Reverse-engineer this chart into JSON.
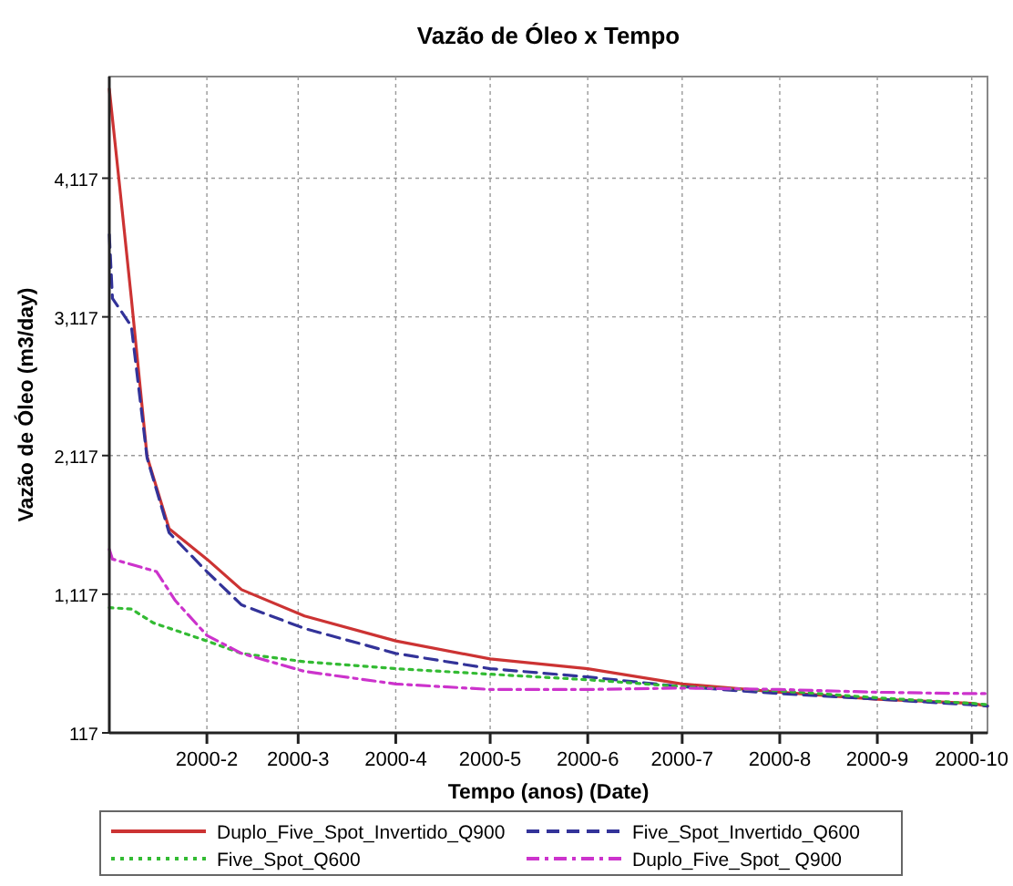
{
  "chart_data": {
    "type": "line",
    "title": "Vazão de Óleo x Tempo",
    "xlabel": "Tempo (anos) (Date)",
    "ylabel": "Vazão de Óleo (m3/day)",
    "series": [
      {
        "name": "Duplo_Five_Spot_Invertido_Q900",
        "color": "#cc3333",
        "line_style": "solid",
        "x": [
          "2000-01-01",
          "2000-01-04",
          "2000-01-08",
          "2000-01-13",
          "2000-01-20",
          "2000-02-01",
          "2000-02-12",
          "2000-03-03",
          "2000-04-01",
          "2000-05-01",
          "2000-06-01",
          "2000-07-01",
          "2000-08-01",
          "2000-09-01",
          "2000-10-01",
          "2000-10-06"
        ],
        "values": [
          4760,
          4120,
          3250,
          2110,
          1590,
          1370,
          1150,
          960,
          780,
          650,
          580,
          470,
          410,
          360,
          330,
          310
        ]
      },
      {
        "name": "Five_Spot_Invertido_Q600",
        "color": "#333399",
        "line_style": "dashed",
        "x": [
          "2000-01-01",
          "2000-01-02",
          "2000-01-08",
          "2000-01-13",
          "2000-01-20",
          "2000-02-01",
          "2000-02-12",
          "2000-03-03",
          "2000-04-01",
          "2000-05-01",
          "2000-06-01",
          "2000-07-01",
          "2000-08-01",
          "2000-09-01",
          "2000-10-01",
          "2000-10-06"
        ],
        "values": [
          3710,
          3250,
          3050,
          2100,
          1560,
          1280,
          1040,
          870,
          690,
          580,
          520,
          450,
          400,
          360,
          320,
          310
        ]
      },
      {
        "name": "Five_Spot_Q600",
        "color": "#33bb33",
        "line_style": "dotted",
        "x": [
          "2000-01-01",
          "2000-01-08",
          "2000-01-15",
          "2000-02-01",
          "2000-02-12",
          "2000-03-03",
          "2000-04-01",
          "2000-05-01",
          "2000-06-01",
          "2000-07-01",
          "2000-08-01",
          "2000-09-01",
          "2000-10-01",
          "2000-10-06"
        ],
        "values": [
          1020,
          1010,
          910,
          780,
          690,
          630,
          580,
          540,
          500,
          450,
          420,
          370,
          330,
          320
        ]
      },
      {
        "name": "Duplo_Five_Spot_ Q900",
        "color": "#cc33cc",
        "line_style": "dashdot",
        "x": [
          "2000-01-01",
          "2000-01-02",
          "2000-01-16",
          "2000-01-22",
          "2000-02-01",
          "2000-02-12",
          "2000-03-03",
          "2000-04-01",
          "2000-05-01",
          "2000-06-01",
          "2000-07-01",
          "2000-08-01",
          "2000-09-01",
          "2000-10-01",
          "2000-10-06"
        ],
        "values": [
          1440,
          1370,
          1280,
          1070,
          820,
          690,
          560,
          470,
          430,
          430,
          440,
          430,
          410,
          400,
          400
        ]
      }
    ],
    "xlim": [
      "2000-01-01",
      "2000-10-06"
    ],
    "xticks": [
      {
        "value": "2000-02-01",
        "label": "2000-2"
      },
      {
        "value": "2000-03-01",
        "label": "2000-3"
      },
      {
        "value": "2000-04-01",
        "label": "2000-4"
      },
      {
        "value": "2000-05-01",
        "label": "2000-5"
      },
      {
        "value": "2000-06-01",
        "label": "2000-6"
      },
      {
        "value": "2000-07-01",
        "label": "2000-7"
      },
      {
        "value": "2000-08-01",
        "label": "2000-8"
      },
      {
        "value": "2000-09-01",
        "label": "2000-9"
      },
      {
        "value": "2000-10-01",
        "label": "2000-10"
      }
    ],
    "ylim": [
      117,
      4850
    ],
    "yticks": [
      117,
      {
        "value": 1117,
        "label": "1,117"
      },
      {
        "value": 2117,
        "label": "2,117"
      },
      {
        "value": 3117,
        "label": "3,117"
      },
      {
        "value": 4117,
        "label": "4,117"
      }
    ],
    "grid": true,
    "legend": "bottom",
    "marker": "none"
  }
}
